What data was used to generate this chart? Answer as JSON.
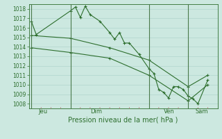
{
  "background_color": "#cce8e0",
  "grid_color": "#b0d4cc",
  "line_color": "#2d6e2d",
  "vline_color": "#4a7a4a",
  "tick_color_minor": "#c08888",
  "title": "Pression niveau de la mer( hPa )",
  "day_labels": [
    "Jeu",
    "Dim",
    "Ven",
    "Sam"
  ],
  "day_positions": [
    0.5,
    8,
    24,
    32
  ],
  "ylim": [
    1007.5,
    1018.5
  ],
  "yticks": [
    1008,
    1009,
    1010,
    1011,
    1012,
    1013,
    1014,
    1015,
    1016,
    1017,
    1018
  ],
  "xlim": [
    -0.5,
    38
  ],
  "series1_x": [
    0,
    1,
    8,
    9,
    10,
    11,
    12,
    14,
    16,
    17,
    18,
    19,
    20,
    22,
    24,
    25,
    26,
    27,
    28,
    29,
    30,
    31,
    32,
    33,
    34,
    36
  ],
  "series1_y": [
    1016.7,
    1015.3,
    1017.8,
    1018.2,
    1017.1,
    1018.3,
    1017.4,
    1016.7,
    1015.5,
    1014.8,
    1015.5,
    1014.4,
    1014.4,
    1013.2,
    1011.7,
    1011.2,
    1009.5,
    1009.2,
    1008.6,
    1009.8,
    1009.8,
    1009.5,
    1008.8,
    1008.5,
    1008.0,
    1010.5
  ],
  "series2_x": [
    0,
    8,
    16,
    24,
    32,
    36
  ],
  "series2_y": [
    1015.2,
    1014.9,
    1013.9,
    1012.6,
    1009.8,
    1011.0
  ],
  "series3_x": [
    0,
    8,
    16,
    24,
    32,
    36
  ],
  "series3_y": [
    1013.9,
    1013.4,
    1012.8,
    1011.0,
    1008.3,
    1010.0
  ],
  "vline_x_positions": [
    0,
    8,
    24,
    32
  ],
  "minor_tick_positions": [
    2,
    4,
    6,
    10,
    12,
    14,
    16,
    18,
    20,
    22,
    26,
    28,
    30,
    34,
    36
  ]
}
